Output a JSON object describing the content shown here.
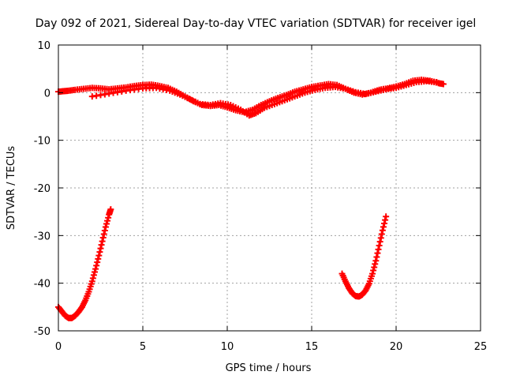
{
  "chart_data": {
    "type": "scatter",
    "title": "Day 092 of 2021, Sidereal Day-to-day VTEC variation (SDTVAR) for receiver igel",
    "xlabel": "GPS time / hours",
    "ylabel": "SDTVAR / TECUs",
    "xlim": [
      0,
      25
    ],
    "ylim": [
      -50,
      10
    ],
    "x_ticks": [
      0,
      5,
      10,
      15,
      20,
      25
    ],
    "y_ticks": [
      -50,
      -40,
      -30,
      -20,
      -10,
      0,
      10
    ],
    "x_tick_labels": [
      "0",
      "5",
      "10",
      "15",
      "20",
      "25"
    ],
    "y_tick_labels": [
      "-50",
      "-40",
      "-30",
      "-20",
      "-10",
      "0",
      "10"
    ],
    "grid": true,
    "legend": "none",
    "marker": "plus",
    "series_color": "#ff0000",
    "series": [
      {
        "name": "main-trace-a",
        "x": [
          0.0,
          0.3,
          0.6,
          1.0,
          1.5,
          2.0,
          2.5,
          3.0,
          3.5,
          4.0,
          4.5,
          5.0,
          5.5,
          6.0,
          6.5,
          7.0,
          7.5,
          8.0,
          8.5,
          9.0,
          9.5,
          10.0,
          10.5,
          11.0,
          11.5,
          12.0,
          12.5,
          13.0,
          13.5,
          14.0,
          14.5,
          15.0,
          15.5,
          16.0,
          16.5,
          17.0,
          17.5,
          18.0,
          18.5,
          19.0,
          19.5,
          20.0,
          20.5,
          21.0,
          21.5,
          22.0,
          22.5,
          22.8
        ],
        "y": [
          0.2,
          0.3,
          0.4,
          0.6,
          0.8,
          1.0,
          0.9,
          0.7,
          0.9,
          1.1,
          1.4,
          1.6,
          1.7,
          1.4,
          1.0,
          0.2,
          -0.8,
          -1.8,
          -2.6,
          -2.8,
          -2.6,
          -3.1,
          -3.7,
          -4.1,
          -3.6,
          -2.6,
          -1.8,
          -1.1,
          -0.5,
          0.2,
          0.7,
          1.2,
          1.5,
          1.8,
          1.6,
          0.8,
          0.0,
          -0.4,
          0.0,
          0.6,
          0.9,
          1.3,
          1.8,
          2.5,
          2.7,
          2.5,
          2.0,
          1.8
        ]
      },
      {
        "name": "main-trace-b",
        "x": [
          2.0,
          3.0,
          4.0,
          5.0,
          5.8,
          6.6,
          7.2,
          7.8,
          8.4,
          9.0,
          9.6,
          10.2,
          10.8,
          11.3,
          11.7,
          12.2,
          12.8,
          13.4,
          14.0,
          14.6,
          15.2,
          15.8,
          16.4,
          17.0,
          17.6,
          18.2,
          18.8,
          19.4,
          20.0,
          20.6,
          21.2,
          21.8,
          22.4
        ],
        "y": [
          -0.8,
          -0.2,
          0.4,
          0.9,
          1.0,
          0.4,
          -0.4,
          -1.4,
          -2.4,
          -2.6,
          -2.2,
          -2.6,
          -3.6,
          -4.8,
          -4.3,
          -3.2,
          -2.4,
          -1.6,
          -0.8,
          0.0,
          0.6,
          1.0,
          1.2,
          0.8,
          0.1,
          -0.3,
          0.2,
          0.7,
          1.0,
          1.6,
          2.2,
          2.4,
          2.2
        ]
      },
      {
        "name": "arc-1",
        "x": [
          0.0,
          0.2,
          0.4,
          0.6,
          0.8,
          1.0,
          1.2,
          1.4,
          1.6,
          1.8,
          2.0,
          2.2,
          2.4,
          2.6,
          2.8,
          3.0,
          3.1
        ],
        "y": [
          -45.0,
          -45.9,
          -46.8,
          -47.3,
          -47.3,
          -46.8,
          -46.0,
          -45.0,
          -43.6,
          -41.8,
          -39.6,
          -37.0,
          -34.2,
          -31.2,
          -28.2,
          -25.6,
          -24.5
        ]
      },
      {
        "name": "arc-2",
        "x": [
          16.8,
          17.0,
          17.2,
          17.4,
          17.6,
          17.8,
          18.0,
          18.2,
          18.4,
          18.6,
          18.8,
          19.0,
          19.2,
          19.4
        ],
        "y": [
          -38.0,
          -39.6,
          -41.0,
          -42.1,
          -42.7,
          -42.8,
          -42.4,
          -41.5,
          -40.1,
          -38.0,
          -35.3,
          -32.1,
          -28.9,
          -26.0
        ]
      }
    ]
  }
}
